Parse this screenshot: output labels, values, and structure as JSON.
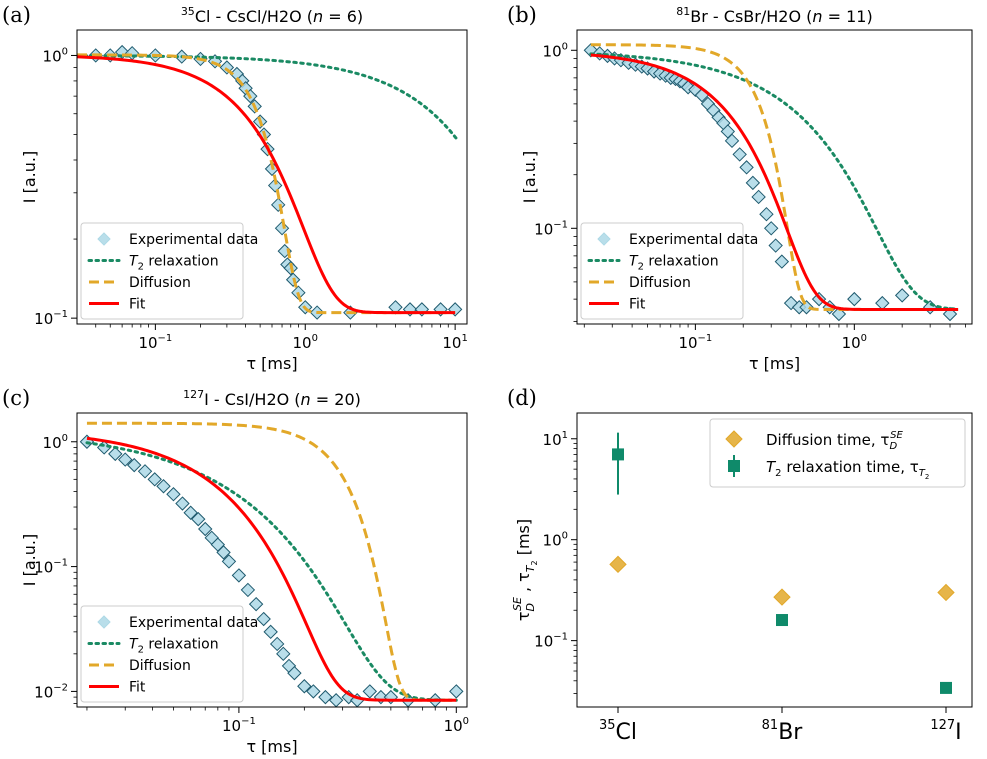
{
  "legend_labels": {
    "exp": "Experimental data",
    "t2": "relaxation",
    "diff": "Diffusion",
    "fit": "Fit",
    "diff_time": "Diffusion time,",
    "t2_time": "relaxation time,"
  },
  "colors": {
    "exp_fill": "#add8e6",
    "exp_edge": "#1f5a6e",
    "t2": "#1a8a63",
    "diff": "#e2a829",
    "fit": "#ff0000",
    "diamond_d": "#e2a829",
    "square_d": "#0f8a6a"
  },
  "chart_data": [
    {
      "panel": "(a)",
      "type": "line",
      "title_sup": "35",
      "title_main": "Cl - CsCl/H2O (",
      "title_n": "n",
      "title_val": " = 6)",
      "xlabel": "τ [ms]",
      "ylabel": "I [a.u.]",
      "xscale": "log",
      "yscale": "log",
      "xlim": [
        0.03,
        12
      ],
      "ylim": [
        0.095,
        1.25
      ],
      "xticks": [
        {
          "v": 0.1,
          "b": "10",
          "e": "−1"
        },
        {
          "v": 1,
          "b": "10",
          "e": "0"
        },
        {
          "v": 10,
          "b": "10",
          "e": "1"
        }
      ],
      "yticks": [
        {
          "v": 0.1,
          "b": "10",
          "e": "−1"
        },
        {
          "v": 1,
          "b": "10",
          "e": "0"
        }
      ],
      "legend_position": "lower-left",
      "series": [
        {
          "key": "exp",
          "kind": "scatter",
          "x": [
            0.04,
            0.05,
            0.06,
            0.07,
            0.1,
            0.15,
            0.2,
            0.25,
            0.3,
            0.35,
            0.38,
            0.4,
            0.43,
            0.46,
            0.5,
            0.53,
            0.56,
            0.6,
            0.63,
            0.66,
            0.7,
            0.73,
            0.76,
            0.8,
            0.83,
            0.9,
            1.0,
            1.2,
            2.0,
            4.0,
            5.0,
            6.0,
            8.0,
            10.0
          ],
          "y": [
            1.0,
            1.0,
            1.03,
            1.02,
            1.0,
            0.99,
            0.97,
            0.95,
            0.9,
            0.85,
            0.8,
            0.75,
            0.7,
            0.64,
            0.56,
            0.5,
            0.44,
            0.37,
            0.32,
            0.27,
            0.22,
            0.18,
            0.16,
            0.155,
            0.14,
            0.125,
            0.11,
            0.105,
            0.105,
            0.11,
            0.108,
            0.108,
            0.108,
            0.108
          ]
        },
        {
          "key": "t2",
          "kind": "t2",
          "tau": 14.0,
          "x0": 0.03,
          "x1": 10.5,
          "A": 1.0,
          "c": 0.0
        },
        {
          "key": "diff",
          "kind": "diff",
          "tau": 0.57,
          "x0": 0.03,
          "x1": 10.0,
          "A": 0.9,
          "c": 0.105
        },
        {
          "key": "fit",
          "kind": "fit",
          "tau": 0.57,
          "x0": 0.03,
          "x1": 10.0,
          "A": 0.9,
          "c": 0.105
        }
      ]
    },
    {
      "panel": "(b)",
      "type": "line",
      "title_sup": "81",
      "title_main": "Br - CsBr/H2O (",
      "title_n": "n",
      "title_val": " = 11)",
      "xlabel": "τ [ms]",
      "ylabel": "I [a.u.]",
      "xscale": "log",
      "yscale": "log",
      "xlim": [
        0.018,
        5.5
      ],
      "ylim": [
        0.029,
        1.3
      ],
      "xticks": [
        {
          "v": 0.1,
          "b": "10",
          "e": "−1"
        },
        {
          "v": 1,
          "b": "10",
          "e": "0"
        }
      ],
      "yticks": [
        {
          "v": 0.1,
          "b": "10",
          "e": "−1"
        },
        {
          "v": 1,
          "b": "10",
          "e": "0"
        }
      ],
      "legend_position": "lower-left",
      "series": [
        {
          "key": "exp",
          "kind": "scatter",
          "x": [
            0.022,
            0.025,
            0.028,
            0.031,
            0.034,
            0.038,
            0.042,
            0.046,
            0.05,
            0.055,
            0.06,
            0.065,
            0.07,
            0.075,
            0.08,
            0.085,
            0.09,
            0.1,
            0.11,
            0.12,
            0.13,
            0.14,
            0.15,
            0.16,
            0.17,
            0.19,
            0.21,
            0.23,
            0.25,
            0.28,
            0.3,
            0.32,
            0.35,
            0.4,
            0.45,
            0.5,
            0.6,
            0.7,
            0.8,
            1.0,
            1.5,
            2.0,
            3.0,
            4.0
          ],
          "y": [
            1.0,
            0.96,
            0.93,
            0.9,
            0.88,
            0.85,
            0.83,
            0.81,
            0.79,
            0.76,
            0.74,
            0.72,
            0.7,
            0.69,
            0.67,
            0.65,
            0.62,
            0.6,
            0.56,
            0.5,
            0.46,
            0.42,
            0.39,
            0.35,
            0.31,
            0.26,
            0.22,
            0.18,
            0.15,
            0.12,
            0.1,
            0.08,
            0.065,
            0.038,
            0.036,
            0.036,
            0.04,
            0.036,
            0.033,
            0.04,
            0.038,
            0.042,
            0.036,
            0.033
          ]
        },
        {
          "key": "t2",
          "kind": "t2",
          "tau": 0.51,
          "x0": 0.022,
          "x1": 4.5,
          "A": 0.96,
          "c": 0.035
        },
        {
          "key": "diff",
          "kind": "diff",
          "tau": 0.27,
          "x0": 0.022,
          "x1": 4.5,
          "A": 1.04,
          "c": 0.035
        },
        {
          "key": "fit",
          "kind": "fit",
          "tau": 0.18,
          "x0": 0.022,
          "x1": 4.5,
          "A": 0.96,
          "c": 0.035
        }
      ]
    },
    {
      "panel": "(c)",
      "type": "line",
      "title_sup": "127",
      "title_main": "I - CsI/H2O (",
      "title_n": "n",
      "title_val": " = 20)",
      "xlabel": "τ [ms]",
      "ylabel": "I [a.u.]",
      "xscale": "log",
      "yscale": "log",
      "xlim": [
        0.018,
        1.12
      ],
      "ylim": [
        0.0075,
        1.7
      ],
      "xticks": [
        {
          "v": 0.1,
          "b": "10",
          "e": "−1"
        },
        {
          "v": 1,
          "b": "10",
          "e": "0"
        }
      ],
      "yticks": [
        {
          "v": 0.01,
          "b": "10",
          "e": "−2"
        },
        {
          "v": 0.1,
          "b": "10",
          "e": "−1"
        },
        {
          "v": 1,
          "b": "10",
          "e": "0"
        }
      ],
      "legend_position": "lower-left",
      "series": [
        {
          "key": "exp",
          "kind": "scatter",
          "x": [
            0.02,
            0.024,
            0.027,
            0.03,
            0.033,
            0.037,
            0.041,
            0.045,
            0.05,
            0.055,
            0.06,
            0.065,
            0.07,
            0.075,
            0.08,
            0.085,
            0.09,
            0.1,
            0.11,
            0.12,
            0.13,
            0.14,
            0.15,
            0.16,
            0.17,
            0.18,
            0.2,
            0.22,
            0.25,
            0.28,
            0.32,
            0.35,
            0.4,
            0.45,
            0.5,
            0.6,
            0.8,
            1.0
          ],
          "y": [
            1.0,
            0.9,
            0.8,
            0.72,
            0.65,
            0.58,
            0.5,
            0.44,
            0.38,
            0.32,
            0.27,
            0.24,
            0.2,
            0.17,
            0.15,
            0.13,
            0.11,
            0.085,
            0.065,
            0.05,
            0.038,
            0.03,
            0.024,
            0.02,
            0.016,
            0.014,
            0.011,
            0.01,
            0.009,
            0.0085,
            0.009,
            0.0085,
            0.01,
            0.009,
            0.009,
            0.0085,
            0.0085,
            0.01
          ]
        },
        {
          "key": "t2",
          "kind": "t2",
          "tau": 0.08,
          "x0": 0.02,
          "x1": 1.0,
          "A": 1.25,
          "c": 0.0085
        },
        {
          "key": "diff",
          "kind": "diff",
          "tau": 0.3,
          "x0": 0.02,
          "x1": 1.0,
          "A": 1.4,
          "c": 0.0085
        },
        {
          "key": "fit",
          "kind": "fit",
          "tau": 0.075,
          "x0": 0.02,
          "x1": 1.0,
          "A": 1.25,
          "c": 0.0085
        }
      ]
    },
    {
      "panel": "(d)",
      "type": "scatter",
      "ylabel": "τ_D^SE , τ_T2 [ms]",
      "xscale": "category",
      "yscale": "log",
      "categories": [
        {
          "sup": "35",
          "base": "Cl"
        },
        {
          "sup": "81",
          "base": "Br"
        },
        {
          "sup": "127",
          "base": "I"
        }
      ],
      "ylim": [
        0.022,
        18
      ],
      "yticks": [
        {
          "v": 0.1,
          "b": "10",
          "e": "−1"
        },
        {
          "v": 1,
          "b": "10",
          "e": "0"
        },
        {
          "v": 10,
          "b": "10",
          "e": "1"
        }
      ],
      "legend_position": "top-right",
      "series": [
        {
          "key": "diff_time",
          "kind": "diamond",
          "values": [
            0.57,
            0.27,
            0.3
          ]
        },
        {
          "key": "t2_time",
          "kind": "square",
          "values": [
            7.0,
            0.16,
            0.034
          ],
          "err_low": [
            2.8,
            null,
            null
          ],
          "err_high": [
            11.5,
            null,
            null
          ]
        }
      ]
    }
  ]
}
